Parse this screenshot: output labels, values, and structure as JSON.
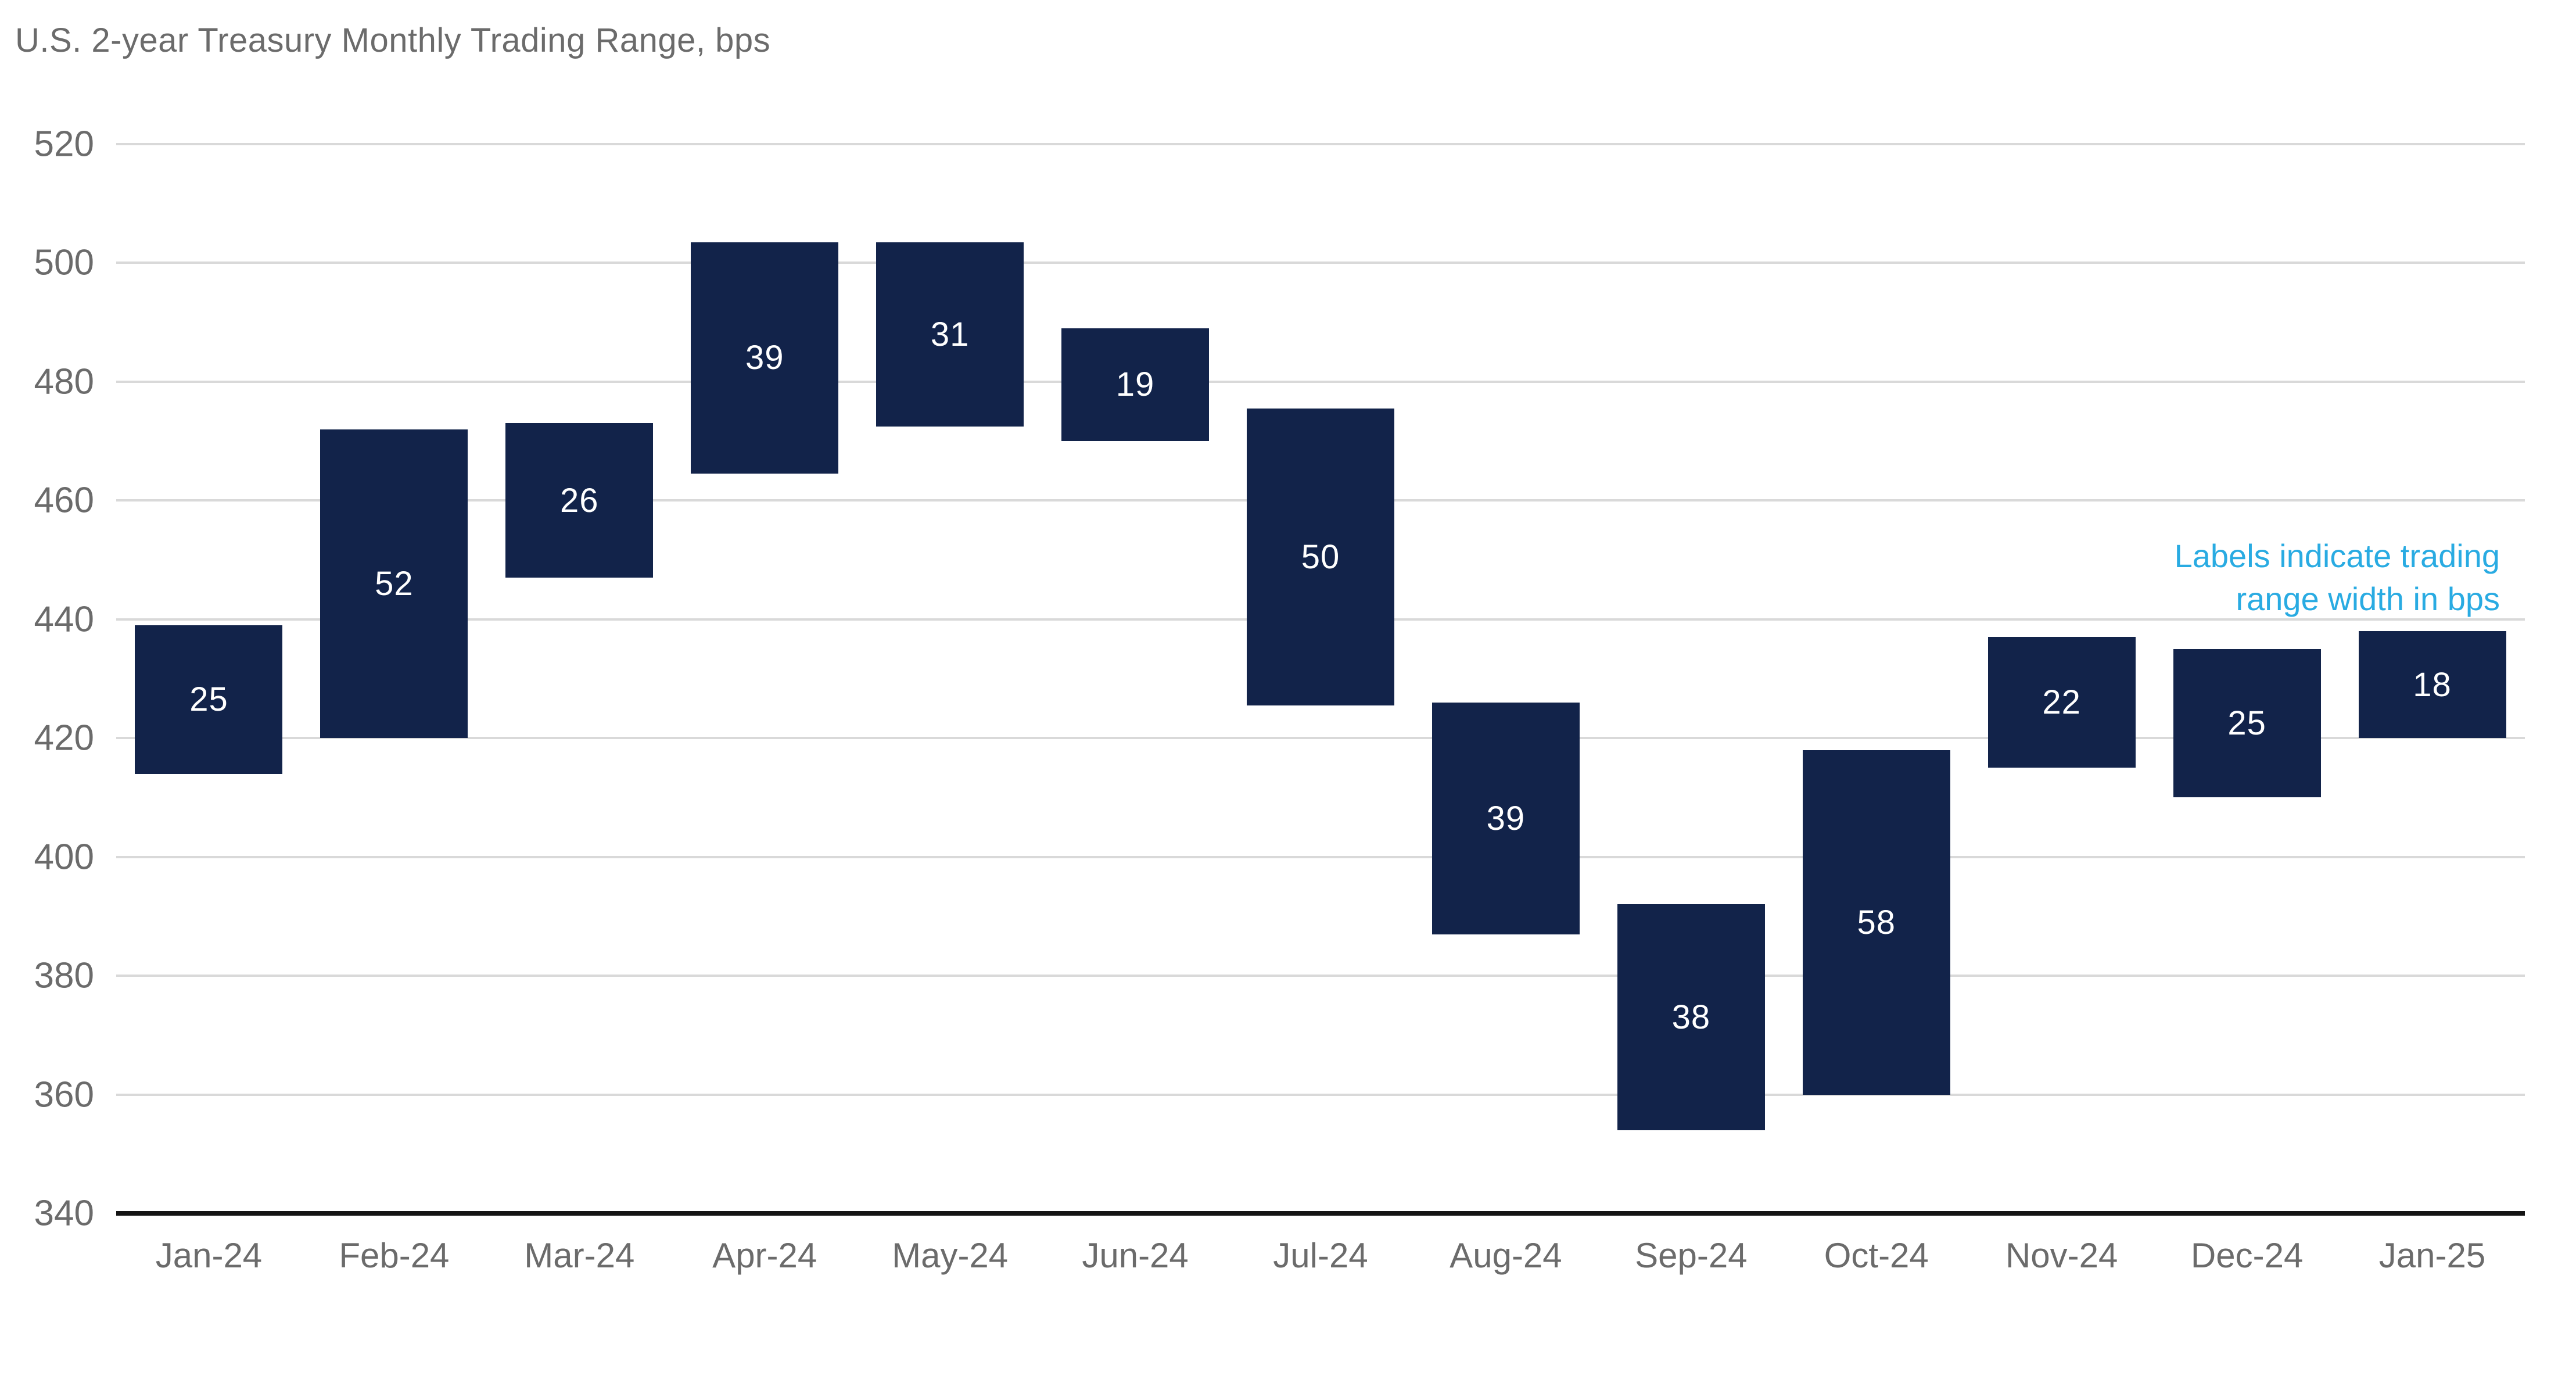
{
  "header": {
    "title": "U.S. 2-year Treasury Monthly Trading Range, bps"
  },
  "annotation": {
    "lines": [
      "Labels indicate trading",
      "range width in bps"
    ]
  },
  "colors": {
    "background": "#ffffff",
    "bar": "#12234a",
    "grid": "#d9d9d9",
    "axis_line": "#141414",
    "tick_text": "#6b6b6b",
    "bar_label": "#ffffff",
    "annotation": "#29abe2"
  },
  "chart_data": {
    "type": "bar",
    "subtype": "floating-range-column",
    "title": "U.S. 2-year Treasury Monthly Trading Range, bps",
    "categories": [
      "Jan-24",
      "Feb-24",
      "Mar-24",
      "Apr-24",
      "May-24",
      "Jun-24",
      "Jul-24",
      "Aug-24",
      "Sep-24",
      "Oct-24",
      "Nov-24",
      "Dec-24",
      "Jan-25"
    ],
    "series": [
      {
        "name": "Monthly trading range",
        "low": [
          414,
          420,
          447,
          464.5,
          472.5,
          470,
          425.5,
          387,
          354,
          360,
          415,
          410,
          420
        ],
        "high": [
          439,
          472,
          473,
          503.5,
          503.5,
          489,
          475.5,
          426,
          392,
          418,
          437,
          435,
          438
        ],
        "data_labels": [
          25,
          52,
          26,
          39,
          31,
          19,
          50,
          39,
          38,
          58,
          22,
          25,
          18
        ]
      }
    ],
    "xlabel": "",
    "ylabel": "",
    "ylim": [
      340,
      520
    ],
    "yticks": [
      520,
      500,
      480,
      460,
      440,
      420,
      400,
      380,
      360,
      340
    ],
    "grid": true,
    "legend": false,
    "annotation_text": "Labels indicate trading range width in bps"
  }
}
